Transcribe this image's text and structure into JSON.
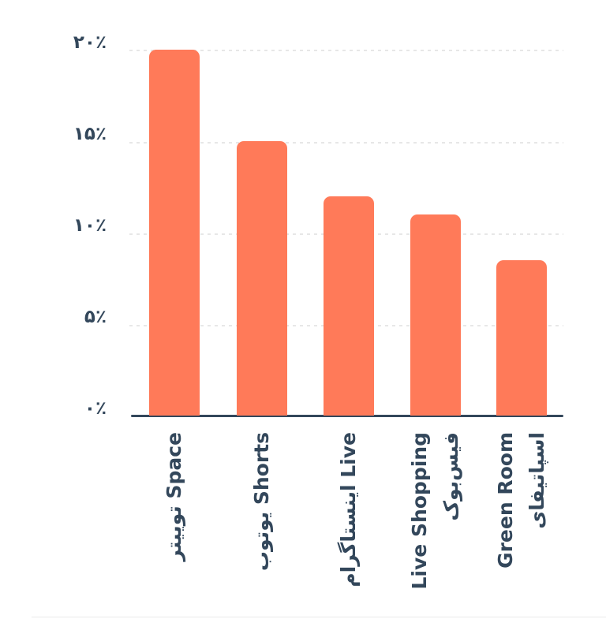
{
  "chart_data": {
    "type": "bar",
    "title": "",
    "xlabel": "",
    "ylabel": "",
    "categories": [
      "توییتر Space",
      "یوتوب Shorts",
      "اینستاگرام Live",
      "Live Shopping فیس‌بوک",
      "Green Room اسپاتیفای"
    ],
    "values": [
      20,
      15,
      12,
      11,
      8.5
    ],
    "unit": "%",
    "ylim": [
      0,
      20
    ],
    "y_ticks": [
      {
        "label": "۲۰٪",
        "value": 20
      },
      {
        "label": "۱۵٪",
        "value": 15
      },
      {
        "label": "۱۰٪",
        "value": 10
      },
      {
        "label": "۵٪",
        "value": 5
      },
      {
        "label": "۰٪",
        "value": 0
      }
    ],
    "grid": "horizontal-dotted",
    "legend": "none",
    "x_label_rotation": -90,
    "colors": {
      "bar": "#ff7a59",
      "axis_text": "#33475b",
      "axis_line": "#33475b",
      "gridline": "#e7e7e7",
      "background": "#ffffff"
    }
  },
  "x_labels": [
    {
      "lines": [
        "توییتر Space"
      ]
    },
    {
      "lines": [
        "یوتوب Shorts"
      ]
    },
    {
      "lines": [
        "اینستاگرام Live"
      ]
    },
    {
      "lines": [
        "Live Shopping",
        "فیس‌بوک"
      ]
    },
    {
      "lines": [
        "Green Room",
        "اسپاتیفای"
      ]
    }
  ]
}
